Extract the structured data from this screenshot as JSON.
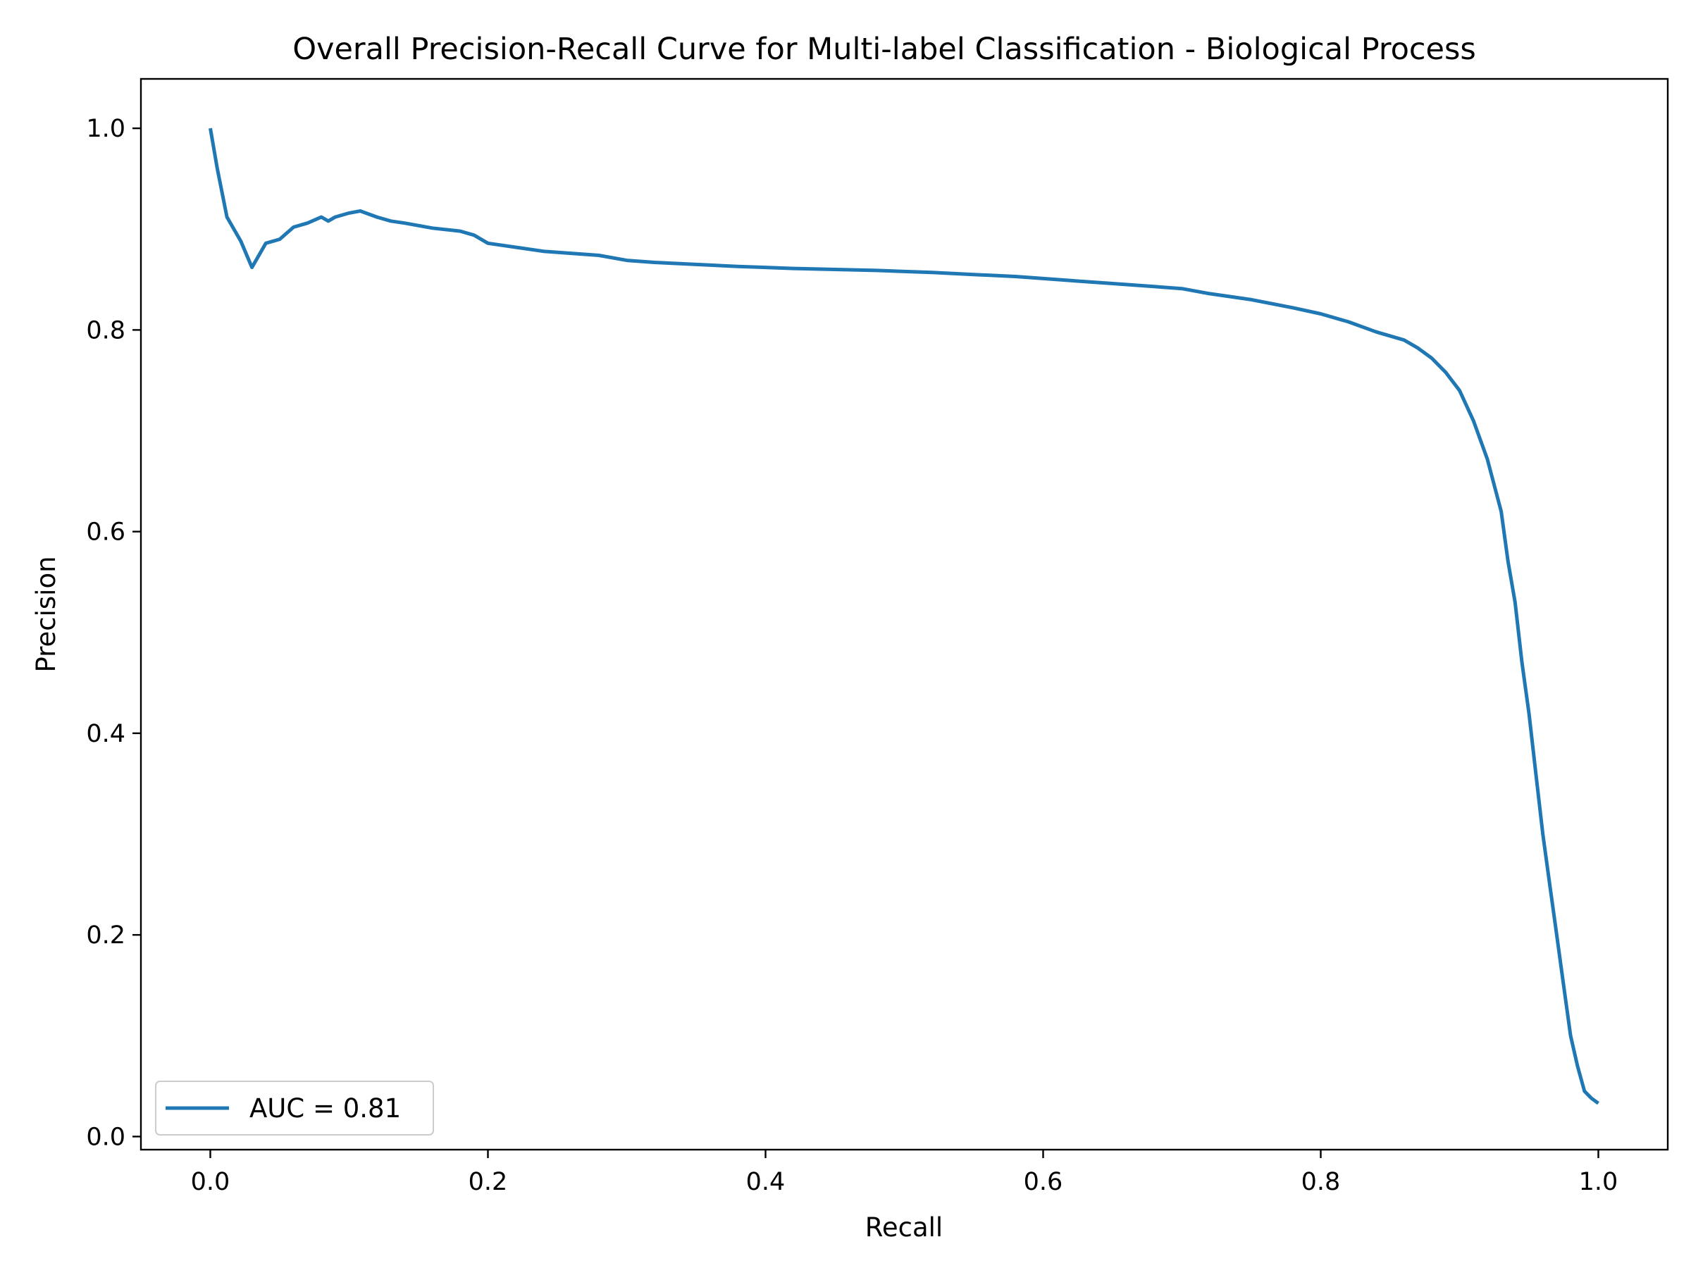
{
  "chart_data": {
    "type": "line",
    "title": "Overall Precision-Recall Curve for Multi-label Classification - Biological Process",
    "xlabel": "Recall",
    "ylabel": "Precision",
    "xlim": [
      -0.05,
      1.05
    ],
    "ylim": [
      -0.013,
      1.049
    ],
    "grid": false,
    "legend_position": "lower-left",
    "x_ticks": [
      0.0,
      0.2,
      0.4,
      0.6,
      0.8,
      1.0
    ],
    "x_tick_labels": [
      "0.0",
      "0.2",
      "0.4",
      "0.6",
      "0.8",
      "1.0"
    ],
    "y_ticks": [
      0.0,
      0.2,
      0.4,
      0.6,
      0.8,
      1.0
    ],
    "y_tick_labels": [
      "0.0",
      "0.2",
      "0.4",
      "0.6",
      "0.8",
      "1.0"
    ],
    "series": [
      {
        "name": "AUC = 0.81",
        "color": "#1f77b4",
        "x": [
          0.0,
          0.005,
          0.012,
          0.022,
          0.03,
          0.04,
          0.05,
          0.06,
          0.07,
          0.08,
          0.085,
          0.09,
          0.1,
          0.108,
          0.12,
          0.13,
          0.14,
          0.16,
          0.18,
          0.19,
          0.2,
          0.22,
          0.24,
          0.26,
          0.28,
          0.3,
          0.32,
          0.35,
          0.38,
          0.4,
          0.42,
          0.45,
          0.48,
          0.5,
          0.52,
          0.55,
          0.58,
          0.6,
          0.62,
          0.65,
          0.68,
          0.7,
          0.72,
          0.75,
          0.78,
          0.8,
          0.82,
          0.84,
          0.86,
          0.87,
          0.88,
          0.89,
          0.9,
          0.91,
          0.92,
          0.93,
          0.935,
          0.94,
          0.945,
          0.95,
          0.955,
          0.96,
          0.965,
          0.97,
          0.975,
          0.98,
          0.985,
          0.99,
          0.995,
          1.0
        ],
        "y": [
          1.0,
          0.96,
          0.912,
          0.888,
          0.862,
          0.886,
          0.89,
          0.902,
          0.906,
          0.912,
          0.908,
          0.912,
          0.916,
          0.918,
          0.912,
          0.908,
          0.906,
          0.901,
          0.898,
          0.894,
          0.886,
          0.882,
          0.878,
          0.876,
          0.874,
          0.869,
          0.867,
          0.865,
          0.863,
          0.862,
          0.861,
          0.86,
          0.859,
          0.858,
          0.857,
          0.855,
          0.853,
          0.851,
          0.849,
          0.846,
          0.843,
          0.841,
          0.836,
          0.83,
          0.822,
          0.816,
          0.808,
          0.798,
          0.79,
          0.782,
          0.772,
          0.758,
          0.74,
          0.71,
          0.672,
          0.62,
          0.57,
          0.53,
          0.47,
          0.42,
          0.36,
          0.3,
          0.25,
          0.2,
          0.15,
          0.1,
          0.07,
          0.045,
          0.038,
          0.033
        ]
      }
    ]
  }
}
